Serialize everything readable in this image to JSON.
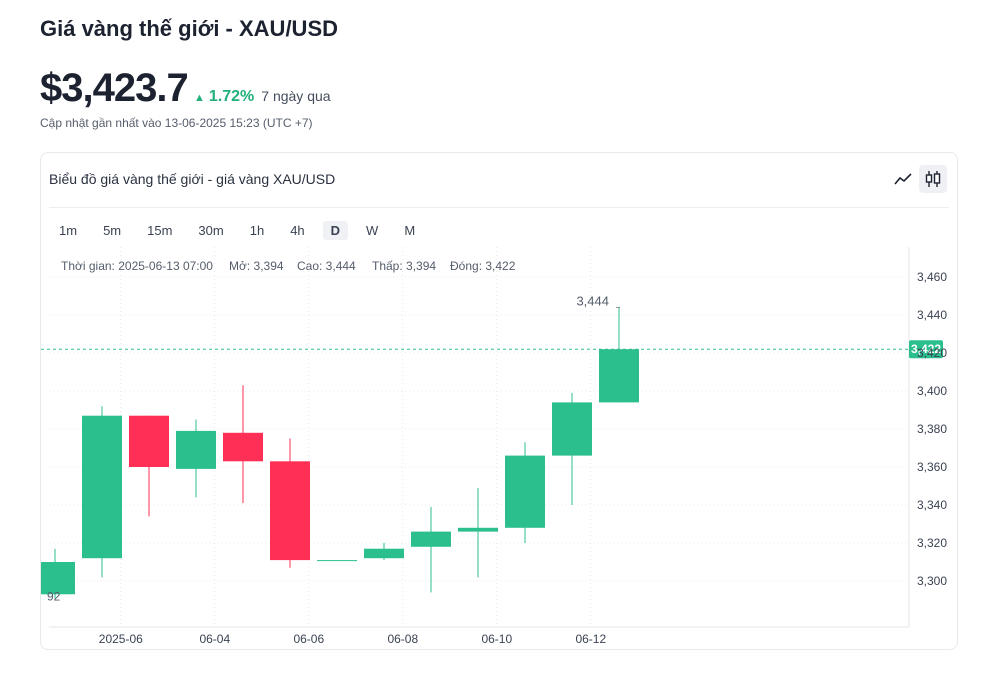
{
  "header": {
    "title": "Giá vàng thế giới - XAU/USD",
    "price": "$3,423.7",
    "change_arrow": "▲",
    "change_pct": "1.72%",
    "change_period": "7 ngày qua",
    "updated": "Cập nhật gần nhất vào 13-06-2025 15:23 (UTC +7)"
  },
  "card": {
    "title": "Biểu đồ giá vàng thế giới - giá vàng XAU/USD",
    "chart_types": [
      "line-chart-icon",
      "candlestick-chart-icon"
    ],
    "active_chart_type": "candlestick-chart-icon"
  },
  "timeframes": [
    "1m",
    "5m",
    "15m",
    "30m",
    "1h",
    "4h",
    "D",
    "W",
    "M"
  ],
  "active_timeframe": "D",
  "legend": {
    "time": "Thời gian: 2025-06-13 07:00",
    "open": "Mở: 3,394",
    "high": "Cao: 3,444",
    "low": "Thấp: 3,394",
    "close": "Đóng: 3,422"
  },
  "colors": {
    "up": "#2bbf8e",
    "down": "#ff2f55",
    "wick_up": "#2bbf8e",
    "wick_down": "#ff2f55",
    "last_price_line": "#2bbf8e"
  },
  "chart_data": {
    "type": "candlestick",
    "ylim": [
      3280,
      3470
    ],
    "y_ticks": [
      3300,
      3320,
      3340,
      3360,
      3380,
      3400,
      3420,
      3440,
      3460
    ],
    "y_tick_labels": [
      "3,300",
      "3,320",
      "3,340",
      "3,360",
      "3,380",
      "3,400",
      "3,420",
      "3,440",
      "3,460"
    ],
    "x_ticks": [
      {
        "label": "2025-06",
        "index": 1.4
      },
      {
        "label": "06-04",
        "index": 3.4
      },
      {
        "label": "06-06",
        "index": 5.4
      },
      {
        "label": "06-08",
        "index": 7.4
      },
      {
        "label": "06-10",
        "index": 9.4
      },
      {
        "label": "06-12",
        "index": 11.4
      }
    ],
    "candles": [
      {
        "open": 3293,
        "high": 3317,
        "low": 3291,
        "close": 3310
      },
      {
        "open": 3312,
        "high": 3392,
        "low": 3302,
        "close": 3387
      },
      {
        "open": 3387,
        "high": 3387,
        "low": 3334,
        "close": 3360
      },
      {
        "open": 3359,
        "high": 3385,
        "low": 3344,
        "close": 3379
      },
      {
        "open": 3378,
        "high": 3403,
        "low": 3341,
        "close": 3363
      },
      {
        "open": 3363,
        "high": 3375,
        "low": 3307,
        "close": 3311
      },
      {
        "open": 3311,
        "high": 3311,
        "low": 3311,
        "close": 3311
      },
      {
        "open": 3312,
        "high": 3320,
        "low": 3311,
        "close": 3317
      },
      {
        "open": 3318,
        "high": 3339,
        "low": 3294,
        "close": 3326
      },
      {
        "open": 3326,
        "high": 3349,
        "low": 3302,
        "close": 3328
      },
      {
        "open": 3328,
        "high": 3373,
        "low": 3320,
        "close": 3366
      },
      {
        "open": 3366,
        "high": 3399,
        "low": 3340,
        "close": 3394
      },
      {
        "open": 3394,
        "high": 3444,
        "low": 3394,
        "close": 3422
      }
    ],
    "last_price": 3422,
    "last_price_label": "3,422",
    "high_annotation": {
      "index": 12,
      "value": 3444,
      "label": "3,444"
    },
    "clipped_left_label": "92"
  }
}
